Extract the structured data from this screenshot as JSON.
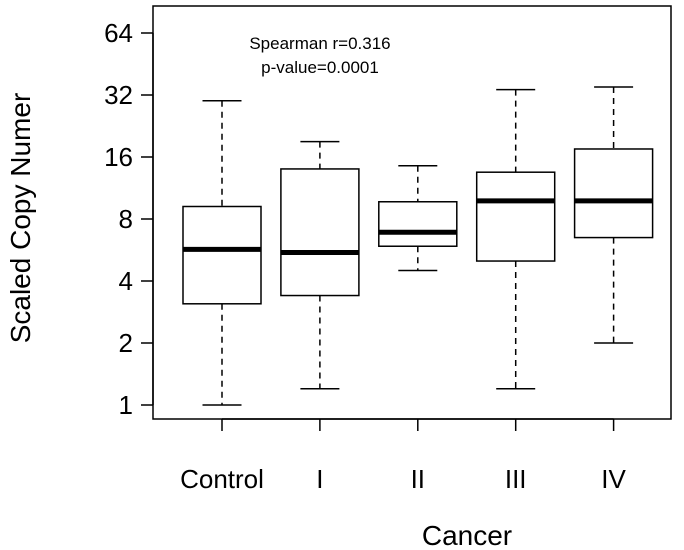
{
  "chart_data": {
    "type": "box",
    "xlabel": "Cancer",
    "ylabel": "Scaled Copy Numer",
    "y_scale": "log2",
    "ylim": [
      0.85,
      90
    ],
    "y_ticks": [
      1,
      2,
      4,
      8,
      16,
      32,
      64
    ],
    "y_tick_labels": [
      "1",
      "2",
      "4",
      "8",
      "16",
      "32",
      "64"
    ],
    "categories": [
      "Control",
      "I",
      "II",
      "III",
      "IV"
    ],
    "boxes": [
      {
        "name": "Control",
        "whisker_low": 1.0,
        "q1": 3.1,
        "median": 5.7,
        "q3": 9.2,
        "whisker_high": 30
      },
      {
        "name": "I",
        "whisker_low": 1.2,
        "q1": 3.4,
        "median": 5.5,
        "q3": 14,
        "whisker_high": 19
      },
      {
        "name": "II",
        "whisker_low": 4.5,
        "q1": 5.9,
        "median": 6.9,
        "q3": 9.7,
        "whisker_high": 14.5
      },
      {
        "name": "III",
        "whisker_low": 1.2,
        "q1": 5.0,
        "median": 9.8,
        "q3": 13.5,
        "whisker_high": 34
      },
      {
        "name": "IV",
        "whisker_low": 2.0,
        "q1": 6.5,
        "median": 9.8,
        "q3": 17.5,
        "whisker_high": 35
      }
    ],
    "annotations": [
      "Spearman r=0.316",
      "p-value=0.0001"
    ],
    "grid": false,
    "legend": "none"
  }
}
